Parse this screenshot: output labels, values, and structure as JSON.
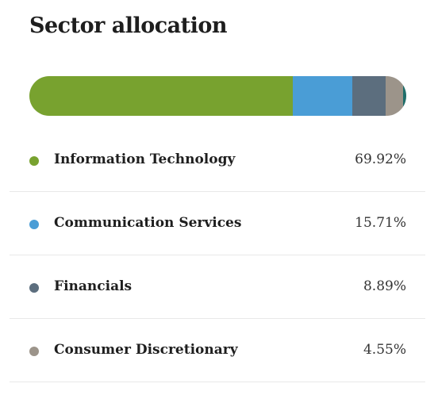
{
  "title": "Sector allocation",
  "chart_data": {
    "type": "bar",
    "categories": [
      "Information Technology",
      "Communication Services",
      "Financials",
      "Consumer Discretionary"
    ],
    "values": [
      69.92,
      15.71,
      8.89,
      4.55
    ],
    "value_labels": [
      "69.92%",
      "15.71%",
      "8.89%",
      "4.55%"
    ],
    "unit": "%",
    "colors": [
      "#78a22f",
      "#4a9dd6",
      "#5c6e7e",
      "#9c948a"
    ],
    "remainder_color": "#1f6e6a",
    "total": 100
  }
}
